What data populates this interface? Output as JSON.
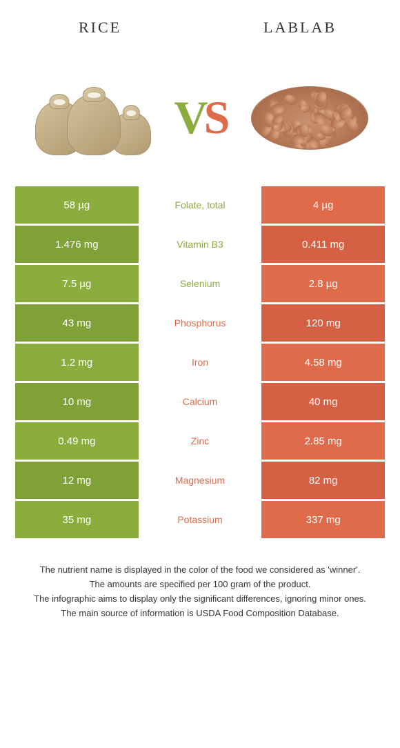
{
  "header": {
    "left": "RICE",
    "right": "LABLAB"
  },
  "vs": {
    "v": "V",
    "s": "S"
  },
  "colors": {
    "green": "#8aad3e",
    "green_dark": "#7fa138",
    "orange": "#df6b4a",
    "orange_dark": "#d66044",
    "text_green": "#8aad3e",
    "text_orange": "#df6b4a"
  },
  "rows": [
    {
      "left": "58 µg",
      "mid": "Folate, total",
      "right": "4 µg",
      "winner": "left"
    },
    {
      "left": "1.476 mg",
      "mid": "Vitamin B3",
      "right": "0.411 mg",
      "winner": "left"
    },
    {
      "left": "7.5 µg",
      "mid": "Selenium",
      "right": "2.8 µg",
      "winner": "left"
    },
    {
      "left": "43 mg",
      "mid": "Phosphorus",
      "right": "120 mg",
      "winner": "right"
    },
    {
      "left": "1.2 mg",
      "mid": "Iron",
      "right": "4.58 mg",
      "winner": "right"
    },
    {
      "left": "10 mg",
      "mid": "Calcium",
      "right": "40 mg",
      "winner": "right"
    },
    {
      "left": "0.49 mg",
      "mid": "Zinc",
      "right": "2.85 mg",
      "winner": "right"
    },
    {
      "left": "12 mg",
      "mid": "Magnesium",
      "right": "82 mg",
      "winner": "right"
    },
    {
      "left": "35 mg",
      "mid": "Potassium",
      "right": "337 mg",
      "winner": "right"
    }
  ],
  "footer": [
    "The nutrient name is displayed in the color of the food we considered as 'winner'.",
    "The amounts are specified per 100 gram of the product.",
    "The infographic aims to display only the significant differences, ignoring minor ones.",
    "The main source of information is USDA Food Composition Database."
  ]
}
